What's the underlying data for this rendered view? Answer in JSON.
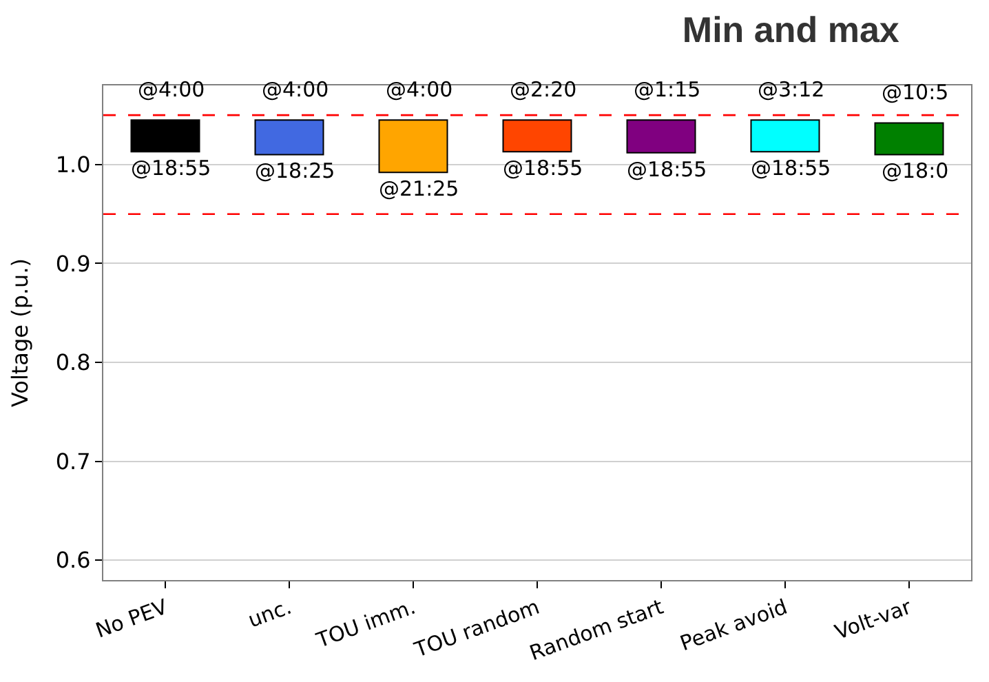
{
  "chart_data": {
    "type": "bar",
    "title": "Min and max",
    "ylabel": "Voltage (p.u.)",
    "categories": [
      "No PEV",
      "unc.",
      "TOU imm.",
      "TOU random",
      "Random start",
      "Peak avoid",
      "Volt-var"
    ],
    "base": [
      1.013,
      1.01,
      0.992,
      1.013,
      1.012,
      1.013,
      1.01
    ],
    "values": [
      0.032,
      0.035,
      0.053,
      0.032,
      0.033,
      0.032,
      0.032
    ],
    "colors": [
      "#000000",
      "#4169e1",
      "#ffa500",
      "#ff4500",
      "#800080",
      "#00ffff",
      "#008000"
    ],
    "ylim": [
      0.58,
      1.08
    ],
    "yticks": [
      {
        "value": 0.6,
        "label": "0.6"
      },
      {
        "value": 0.7,
        "label": "0.7"
      },
      {
        "value": 0.8,
        "label": "0.8"
      },
      {
        "value": 0.9,
        "label": "0.9"
      },
      {
        "value": 1.0,
        "label": "1.0"
      }
    ],
    "grid": "y",
    "ref_lines": [
      {
        "axis": "y",
        "value": 1.05,
        "color": "#ff0000",
        "line_style": "dashed"
      },
      {
        "axis": "y",
        "value": 0.95,
        "color": "#ff0000",
        "line_style": "dashed"
      }
    ],
    "annotations": [
      {
        "text": "@4:00",
        "x": "No PEV",
        "y": 1.045
      },
      {
        "text": "@18:55",
        "x": "No PEV",
        "y": 1.013
      },
      {
        "text": "@4:00",
        "x": "unc.",
        "y": 1.045
      },
      {
        "text": "@18:25",
        "x": "unc.",
        "y": 1.01
      },
      {
        "text": "@4:00",
        "x": "TOU imm.",
        "y": 1.045
      },
      {
        "text": "@21:25",
        "x": "TOU imm.",
        "y": 0.992
      },
      {
        "text": "@2:20",
        "x": "TOU random",
        "y": 1.045
      },
      {
        "text": "@18:55",
        "x": "TOU random",
        "y": 1.013
      },
      {
        "text": "@1:15",
        "x": "Random start",
        "y": 1.045
      },
      {
        "text": "@18:55",
        "x": "Random start",
        "y": 1.012
      },
      {
        "text": "@3:12",
        "x": "Peak avoid",
        "y": 1.045
      },
      {
        "text": "@18:55",
        "x": "Peak avoid",
        "y": 1.013
      },
      {
        "text": "@10:5",
        "x": "Volt-var",
        "y": 1.042
      },
      {
        "text": "@18:0",
        "x": "Volt-var",
        "y": 1.01
      }
    ]
  }
}
